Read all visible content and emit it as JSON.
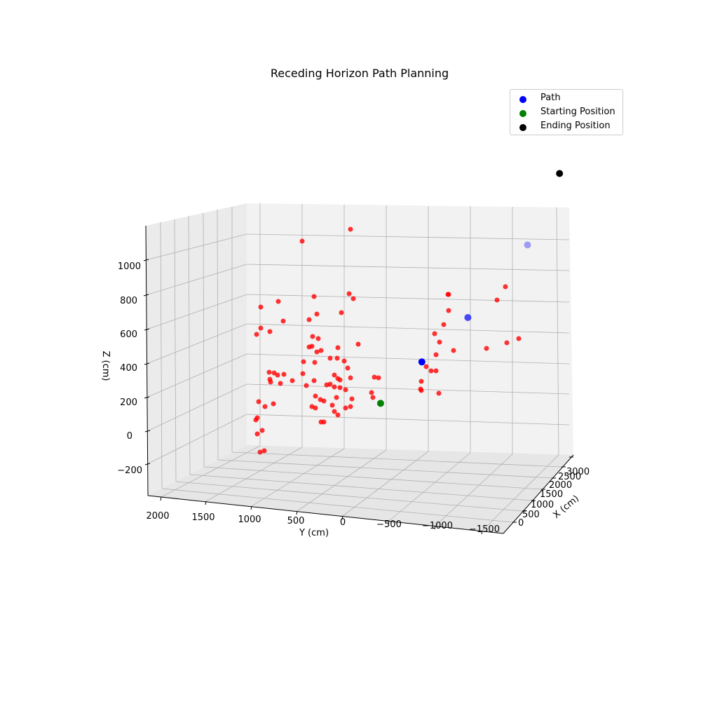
{
  "chart_data": {
    "type": "scatter3d",
    "title": "Receding Horizon Path Planning",
    "xlabel": "X (cm)",
    "ylabel": "Y (cm)",
    "zlabel": "Z (cm)",
    "x_ticks": [
      "0",
      "500",
      "1000",
      "1500",
      "2000",
      "2500",
      "3000"
    ],
    "y_ticks": [
      "2000",
      "1500",
      "1000",
      "500",
      "0",
      "−500",
      "−1000",
      "−1500"
    ],
    "z_ticks": [
      "−200",
      "0",
      "200",
      "400",
      "600",
      "800",
      "1000"
    ],
    "grid": true,
    "legend_position": "top-right",
    "legend": [
      "Path",
      "Starting Position",
      "Ending Position"
    ],
    "colors": {
      "path": "#0000ff",
      "start": "#008000",
      "end": "#000000",
      "obstacles": "#ff0000"
    },
    "series": [
      {
        "name": "Path",
        "points": [
          {
            "x": 900,
            "y": -150,
            "z": 20
          },
          {
            "x": 1300,
            "y": -350,
            "z": 120
          },
          {
            "x": 1900,
            "y": -550,
            "z": 300
          }
        ]
      },
      {
        "name": "Starting Position",
        "points": [
          {
            "x": 500,
            "y": 0,
            "z": -60
          }
        ]
      },
      {
        "name": "Ending Position",
        "points": [
          {
            "x": 2300,
            "y": -600,
            "z": 550
          }
        ]
      }
    ]
  }
}
